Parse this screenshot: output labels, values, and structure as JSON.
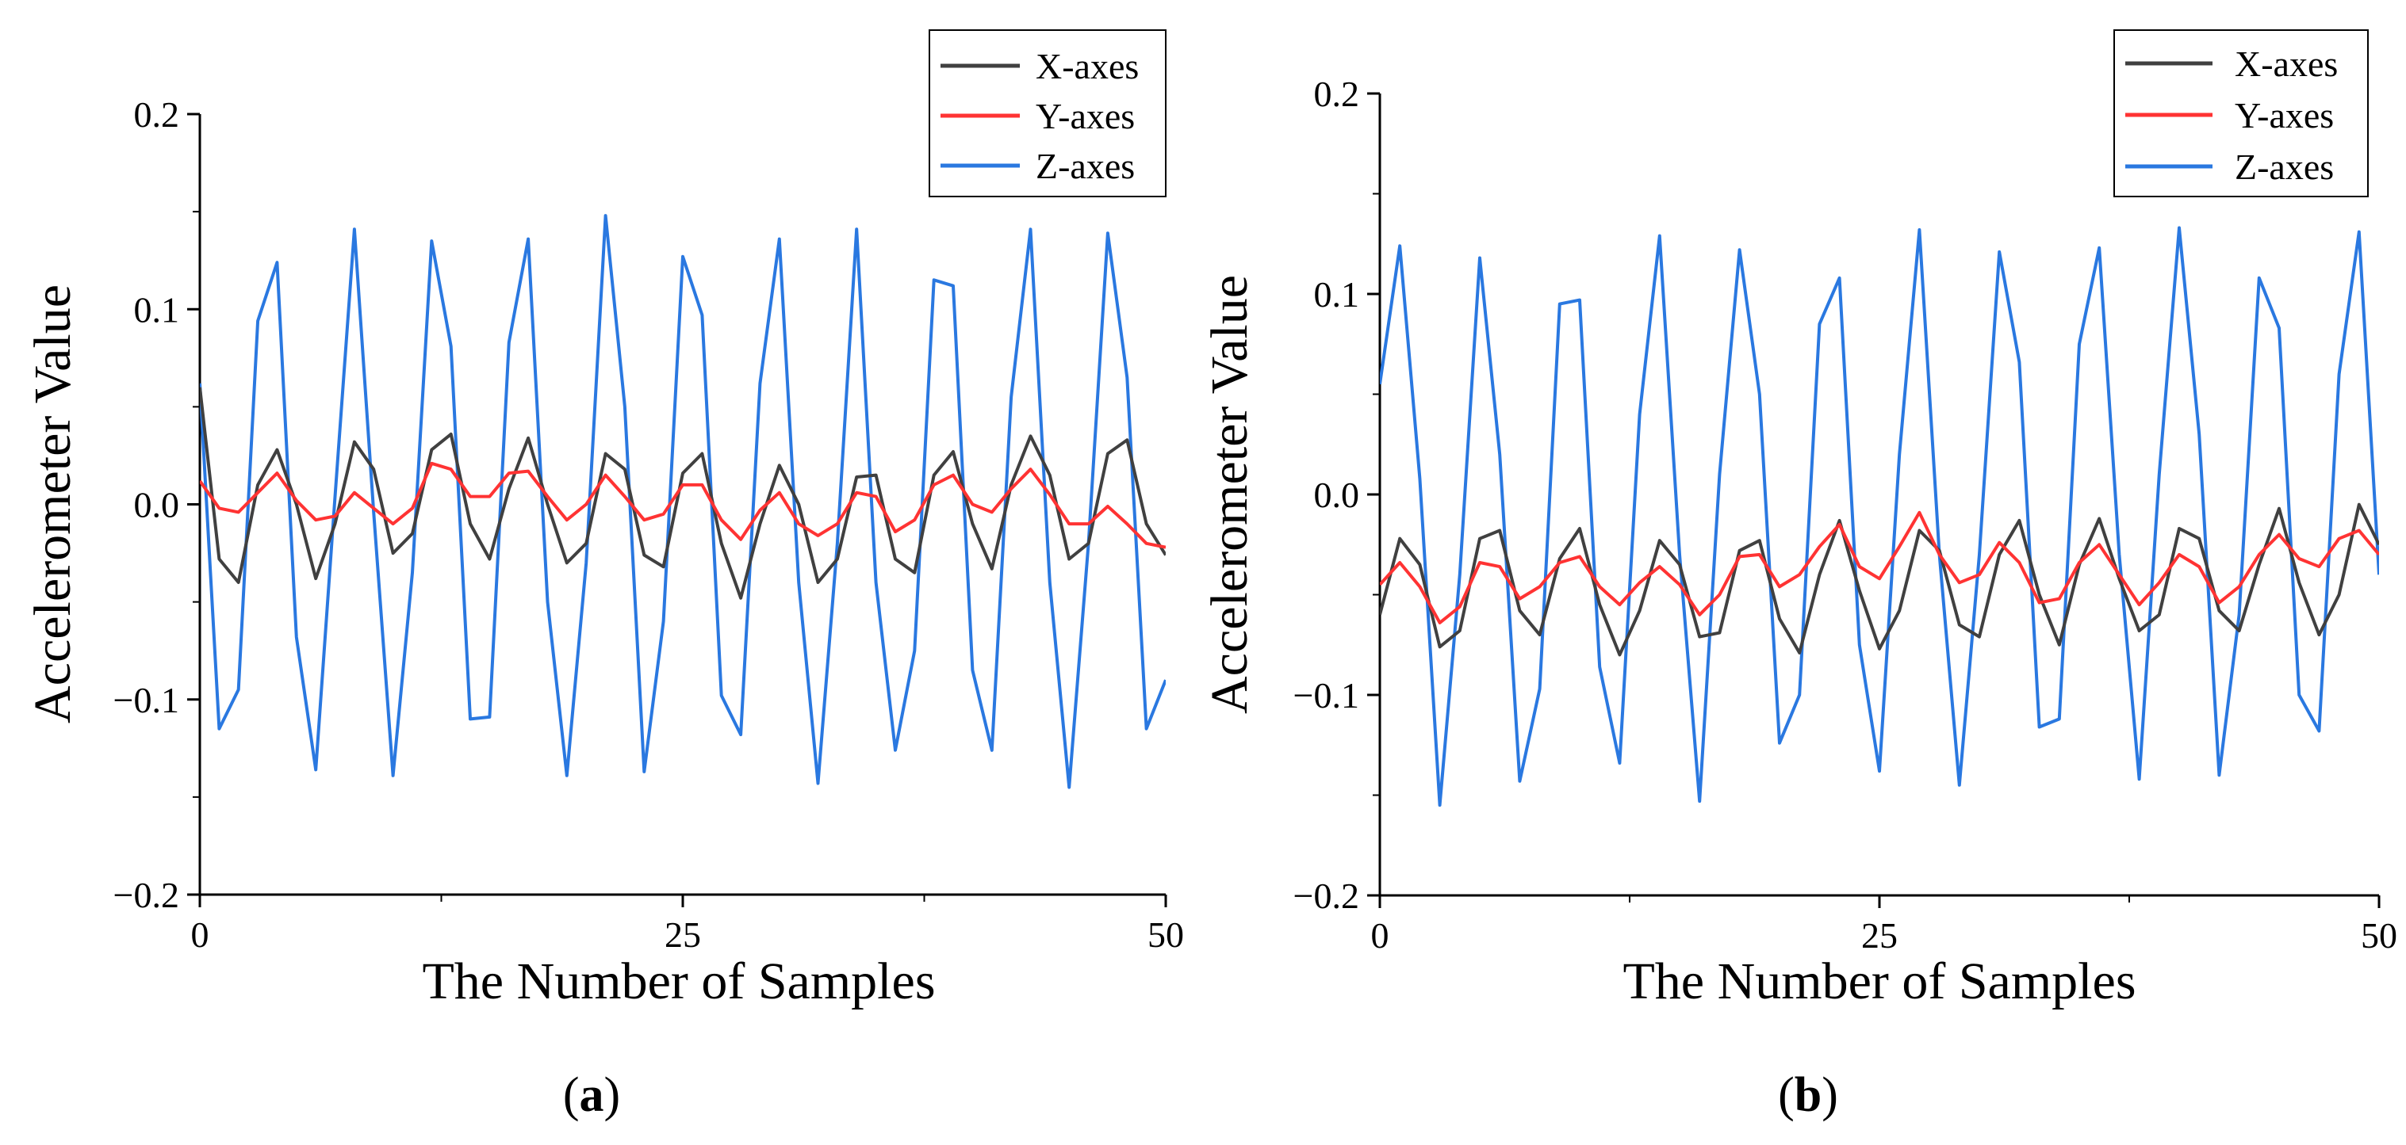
{
  "figure": {
    "panel_labels": [
      {
        "open": "(",
        "letter": "a",
        "close": ")"
      },
      {
        "open": "(",
        "letter": "b",
        "close": ")"
      }
    ]
  },
  "colors": {
    "x_axes": "#404040",
    "y_axes": "#ff3333",
    "z_axes": "#2a78e0",
    "axis": "#000000"
  },
  "chart_data": [
    {
      "type": "line",
      "panel": "a",
      "xlabel": "The Number of Samples",
      "ylabel": "Accelerometer Value",
      "xlim": [
        0,
        50
      ],
      "ylim": [
        -0.2,
        0.2
      ],
      "xticks": [
        0,
        25,
        50
      ],
      "xtick_labels": [
        "0",
        "25",
        "50"
      ],
      "yticks": [
        -0.2,
        -0.1,
        0.0,
        0.1,
        0.2
      ],
      "ytick_labels": [
        "−0.2",
        "−0.1",
        "0.0",
        "0.1",
        "0.2"
      ],
      "legend_position": "top-right",
      "x": [
        0,
        1,
        2,
        3,
        4,
        5,
        6,
        7,
        8,
        9,
        10,
        11,
        12,
        13,
        14,
        15,
        16,
        17,
        18,
        19,
        20,
        21,
        22,
        23,
        24,
        25,
        26,
        27,
        28,
        29,
        30,
        31,
        32,
        33,
        34,
        35,
        36,
        37,
        38,
        39,
        40,
        41,
        42,
        43,
        44,
        45,
        46,
        47,
        48,
        49,
        50
      ],
      "series": [
        {
          "name": "X-axes",
          "color_key": "x_axes",
          "values": [
            0.06,
            -0.028,
            -0.04,
            0.01,
            0.028,
            0.0,
            -0.038,
            -0.01,
            0.032,
            0.018,
            -0.025,
            -0.015,
            0.028,
            0.036,
            -0.01,
            -0.028,
            0.008,
            0.034,
            0.0,
            -0.03,
            -0.02,
            0.026,
            0.018,
            -0.026,
            -0.032,
            0.016,
            0.026,
            -0.02,
            -0.048,
            -0.01,
            0.02,
            0.0,
            -0.04,
            -0.028,
            0.014,
            0.015,
            -0.028,
            -0.035,
            0.015,
            0.027,
            -0.01,
            -0.033,
            0.01,
            0.035,
            0.015,
            -0.028,
            -0.02,
            0.026,
            0.033,
            -0.01,
            -0.026
          ]
        },
        {
          "name": "Y-axes",
          "color_key": "y_axes",
          "values": [
            0.012,
            -0.002,
            -0.004,
            0.006,
            0.016,
            0.002,
            -0.008,
            -0.006,
            0.006,
            -0.002,
            -0.01,
            -0.002,
            0.021,
            0.018,
            0.004,
            0.004,
            0.016,
            0.017,
            0.004,
            -0.008,
            0.0,
            0.015,
            0.004,
            -0.008,
            -0.005,
            0.01,
            0.01,
            -0.008,
            -0.018,
            -0.003,
            0.006,
            -0.01,
            -0.016,
            -0.01,
            0.006,
            0.004,
            -0.014,
            -0.008,
            0.01,
            0.015,
            0.0,
            -0.004,
            0.008,
            0.018,
            0.005,
            -0.01,
            -0.01,
            -0.001,
            -0.01,
            -0.02,
            -0.022
          ]
        },
        {
          "name": "Z-axes",
          "color_key": "z_axes",
          "values": [
            0.062,
            -0.115,
            -0.095,
            0.094,
            0.124,
            -0.068,
            -0.136,
            0.004,
            0.141,
            -0.004,
            -0.139,
            -0.035,
            0.135,
            0.081,
            -0.11,
            -0.109,
            0.083,
            0.136,
            -0.05,
            -0.139,
            -0.03,
            0.148,
            0.05,
            -0.137,
            -0.06,
            0.127,
            0.097,
            -0.098,
            -0.118,
            0.062,
            0.136,
            -0.04,
            -0.143,
            -0.02,
            0.141,
            -0.04,
            -0.126,
            -0.075,
            0.115,
            0.112,
            -0.085,
            -0.126,
            0.055,
            0.141,
            -0.04,
            -0.145,
            -0.02,
            0.139,
            0.065,
            -0.115,
            -0.09
          ]
        }
      ]
    },
    {
      "type": "line",
      "panel": "b",
      "xlabel": "The Number of Samples",
      "ylabel": "Accelerometer Value",
      "xlim": [
        0,
        50
      ],
      "ylim": [
        -0.2,
        0.2
      ],
      "xticks": [
        0,
        25,
        50
      ],
      "xtick_labels": [
        "0",
        "25",
        "50"
      ],
      "yticks": [
        -0.2,
        -0.1,
        0.0,
        0.1,
        0.2
      ],
      "ytick_labels": [
        "−0.2",
        "−0.1",
        "0.0",
        "0.1",
        "0.2"
      ],
      "legend_position": "top-right",
      "x": [
        0,
        1,
        2,
        3,
        4,
        5,
        6,
        7,
        8,
        9,
        10,
        11,
        12,
        13,
        14,
        15,
        16,
        17,
        18,
        19,
        20,
        21,
        22,
        23,
        24,
        25,
        26,
        27,
        28,
        29,
        30,
        31,
        32,
        33,
        34,
        35,
        36,
        37,
        38,
        39,
        40,
        41,
        42,
        43,
        44,
        45,
        46,
        47,
        48,
        49,
        50
      ],
      "series": [
        {
          "name": "X-axes",
          "color_key": "x_axes",
          "values": [
            -0.06,
            -0.022,
            -0.035,
            -0.076,
            -0.068,
            -0.022,
            -0.018,
            -0.058,
            -0.07,
            -0.032,
            -0.017,
            -0.055,
            -0.08,
            -0.058,
            -0.023,
            -0.035,
            -0.071,
            -0.069,
            -0.028,
            -0.023,
            -0.062,
            -0.079,
            -0.04,
            -0.013,
            -0.048,
            -0.077,
            -0.058,
            -0.018,
            -0.028,
            -0.065,
            -0.071,
            -0.03,
            -0.013,
            -0.05,
            -0.075,
            -0.035,
            -0.012,
            -0.042,
            -0.068,
            -0.06,
            -0.017,
            -0.022,
            -0.058,
            -0.068,
            -0.035,
            -0.007,
            -0.044,
            -0.07,
            -0.05,
            -0.005,
            -0.025
          ]
        },
        {
          "name": "Y-axes",
          "color_key": "y_axes",
          "values": [
            -0.045,
            -0.034,
            -0.046,
            -0.064,
            -0.056,
            -0.034,
            -0.036,
            -0.052,
            -0.046,
            -0.034,
            -0.031,
            -0.046,
            -0.055,
            -0.044,
            -0.036,
            -0.045,
            -0.06,
            -0.05,
            -0.031,
            -0.03,
            -0.046,
            -0.04,
            -0.026,
            -0.015,
            -0.036,
            -0.042,
            -0.026,
            -0.009,
            -0.03,
            -0.044,
            -0.04,
            -0.024,
            -0.034,
            -0.054,
            -0.052,
            -0.034,
            -0.025,
            -0.04,
            -0.055,
            -0.044,
            -0.03,
            -0.036,
            -0.054,
            -0.046,
            -0.03,
            -0.02,
            -0.032,
            -0.036,
            -0.022,
            -0.018,
            -0.03
          ]
        },
        {
          "name": "Z-axes",
          "color_key": "z_axes",
          "values": [
            0.055,
            0.124,
            0.008,
            -0.155,
            -0.04,
            0.118,
            0.02,
            -0.143,
            -0.097,
            0.095,
            0.097,
            -0.086,
            -0.134,
            0.04,
            0.129,
            -0.03,
            -0.153,
            0.01,
            0.122,
            0.05,
            -0.124,
            -0.1,
            0.085,
            0.108,
            -0.075,
            -0.138,
            0.02,
            0.132,
            -0.03,
            -0.145,
            -0.03,
            0.121,
            0.066,
            -0.116,
            -0.112,
            0.075,
            0.123,
            -0.03,
            -0.142,
            0.01,
            0.133,
            0.03,
            -0.14,
            -0.06,
            0.108,
            0.083,
            -0.1,
            -0.118,
            0.06,
            0.131,
            -0.04
          ]
        }
      ]
    }
  ]
}
